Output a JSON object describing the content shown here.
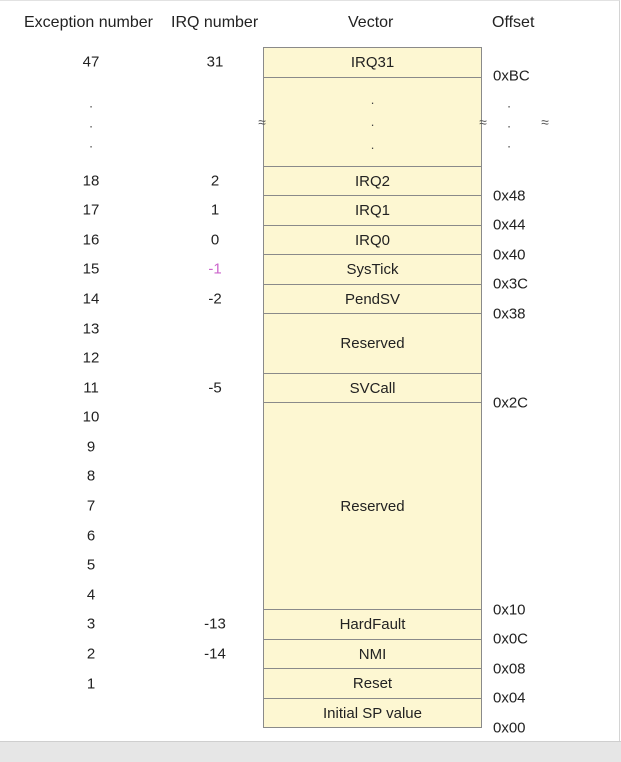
{
  "headers": {
    "exception": "Exception number",
    "irq": "IRQ number",
    "vector": "Vector",
    "offset": "Offset"
  },
  "rows": [
    {
      "exc": "47",
      "irq": "31"
    },
    {
      "exc": "18",
      "irq": "2"
    },
    {
      "exc": "17",
      "irq": "1"
    },
    {
      "exc": "16",
      "irq": "0"
    },
    {
      "exc": "15",
      "irq": "-1"
    },
    {
      "exc": "14",
      "irq": "-2"
    },
    {
      "exc": "13",
      "irq": ""
    },
    {
      "exc": "12",
      "irq": ""
    },
    {
      "exc": "11",
      "irq": "-5"
    },
    {
      "exc": "10",
      "irq": ""
    },
    {
      "exc": "9",
      "irq": ""
    },
    {
      "exc": "8",
      "irq": ""
    },
    {
      "exc": "7",
      "irq": ""
    },
    {
      "exc": "6",
      "irq": ""
    },
    {
      "exc": "5",
      "irq": ""
    },
    {
      "exc": "4",
      "irq": ""
    },
    {
      "exc": "3",
      "irq": "-13"
    },
    {
      "exc": "2",
      "irq": "-14"
    },
    {
      "exc": "1",
      "irq": ""
    }
  ],
  "vectors": [
    "IRQ31",
    "",
    "IRQ2",
    "IRQ1",
    "IRQ0",
    "SysTick",
    "PendSV",
    "Reserved",
    "SVCall",
    "Reserved",
    "HardFault",
    "NMI",
    "Reset",
    "Initial SP value"
  ],
  "offsets": [
    "0xBC",
    "0x48",
    "0x44",
    "0x40",
    "0x3C",
    "0x38",
    "0x2C",
    "0x10",
    "0x0C",
    "0x08",
    "0x04",
    "0x00"
  ],
  "ellipsis_dot": ".",
  "break_mark": "≈",
  "colors": {
    "cell_fill": "#fdf7d2",
    "cell_border": "#8a8a8a",
    "irq_highlight": "#cc66cc",
    "text": "#222222"
  }
}
